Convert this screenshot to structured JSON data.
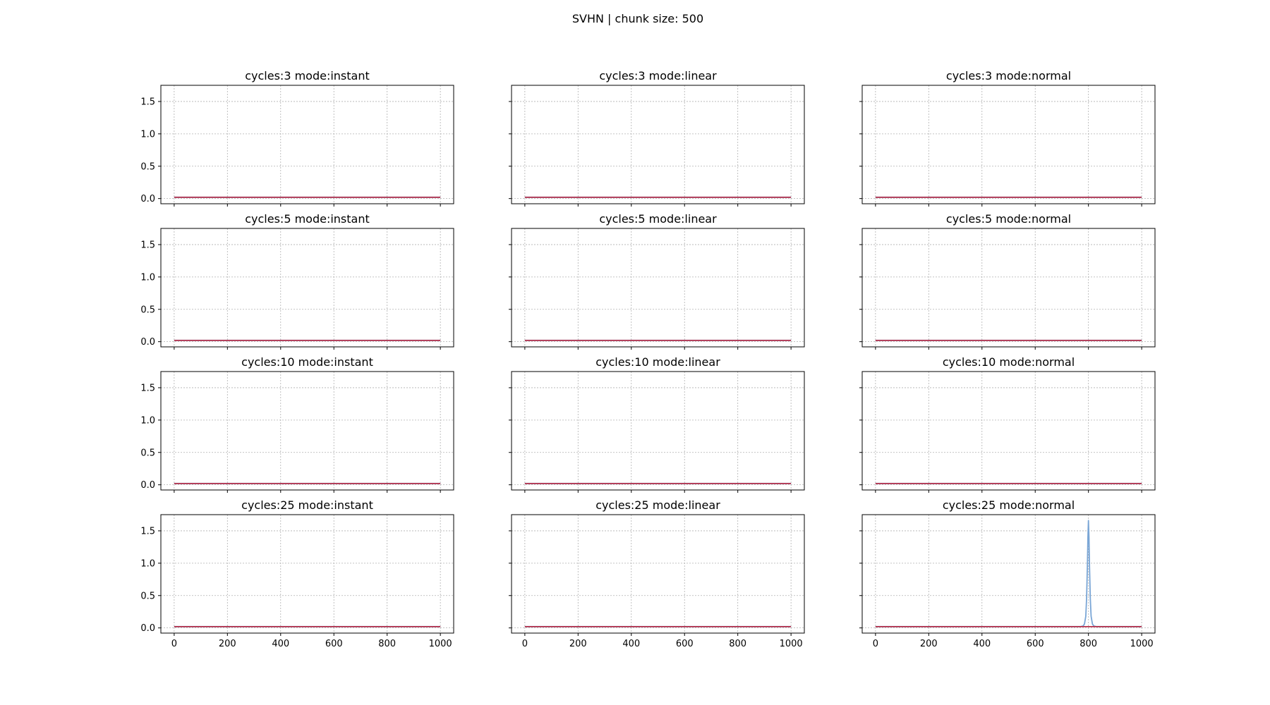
{
  "chart_data": {
    "title": "SVHN | chunk size: 500",
    "layout": {
      "rows": 4,
      "cols": 3
    },
    "type": "line",
    "xlim": [
      -50,
      1050
    ],
    "ylim": [
      -0.08,
      1.75
    ],
    "xticks": [
      0,
      200,
      400,
      600,
      800,
      1000
    ],
    "yticks": [
      0.0,
      0.5,
      1.0,
      1.5
    ],
    "xtick_labels": [
      "0",
      "200",
      "400",
      "600",
      "800",
      "1000"
    ],
    "ytick_labels": [
      "0.0",
      "0.5",
      "1.0",
      "1.5"
    ],
    "grid": true,
    "colors": {
      "series_a": "#7aa6d6",
      "series_b": "#b2233f",
      "grid": "#b0b0b0",
      "axes": "#000000"
    },
    "subplots": [
      {
        "title": "cycles:3 mode:instant",
        "series": [
          {
            "x": [
              0,
              1000
            ],
            "y": [
              0.02,
              0.02
            ]
          },
          {
            "x": [
              0,
              1000
            ],
            "y": [
              0.02,
              0.02
            ]
          }
        ]
      },
      {
        "title": "cycles:3 mode:linear",
        "series": [
          {
            "x": [
              0,
              1000
            ],
            "y": [
              0.02,
              0.02
            ]
          },
          {
            "x": [
              0,
              1000
            ],
            "y": [
              0.02,
              0.02
            ]
          }
        ]
      },
      {
        "title": "cycles:3 mode:normal",
        "series": [
          {
            "x": [
              0,
              1000
            ],
            "y": [
              0.02,
              0.02
            ]
          },
          {
            "x": [
              0,
              1000
            ],
            "y": [
              0.02,
              0.02
            ]
          }
        ]
      },
      {
        "title": "cycles:5 mode:instant",
        "series": [
          {
            "x": [
              0,
              1000
            ],
            "y": [
              0.02,
              0.02
            ]
          },
          {
            "x": [
              0,
              1000
            ],
            "y": [
              0.02,
              0.02
            ]
          }
        ]
      },
      {
        "title": "cycles:5 mode:linear",
        "series": [
          {
            "x": [
              0,
              1000
            ],
            "y": [
              0.02,
              0.02
            ]
          },
          {
            "x": [
              0,
              1000
            ],
            "y": [
              0.02,
              0.02
            ]
          }
        ]
      },
      {
        "title": "cycles:5 mode:normal",
        "series": [
          {
            "x": [
              0,
              1000
            ],
            "y": [
              0.02,
              0.02
            ]
          },
          {
            "x": [
              0,
              1000
            ],
            "y": [
              0.02,
              0.02
            ]
          }
        ]
      },
      {
        "title": "cycles:10 mode:instant",
        "series": [
          {
            "x": [
              0,
              1000
            ],
            "y": [
              0.02,
              0.02
            ]
          },
          {
            "x": [
              0,
              1000
            ],
            "y": [
              0.02,
              0.02
            ]
          }
        ]
      },
      {
        "title": "cycles:10 mode:linear",
        "series": [
          {
            "x": [
              0,
              1000
            ],
            "y": [
              0.02,
              0.02
            ]
          },
          {
            "x": [
              0,
              1000
            ],
            "y": [
              0.02,
              0.02
            ]
          }
        ]
      },
      {
        "title": "cycles:10 mode:normal",
        "series": [
          {
            "x": [
              0,
              1000
            ],
            "y": [
              0.02,
              0.02
            ]
          },
          {
            "x": [
              0,
              1000
            ],
            "y": [
              0.02,
              0.02
            ]
          }
        ]
      },
      {
        "title": "cycles:25 mode:instant",
        "series": [
          {
            "x": [
              0,
              1000
            ],
            "y": [
              0.02,
              0.02
            ]
          },
          {
            "x": [
              0,
              1000
            ],
            "y": [
              0.02,
              0.02
            ]
          }
        ]
      },
      {
        "title": "cycles:25 mode:linear",
        "series": [
          {
            "x": [
              0,
              1000
            ],
            "y": [
              0.02,
              0.02
            ]
          },
          {
            "x": [
              0,
              1000
            ],
            "y": [
              0.02,
              0.02
            ]
          }
        ]
      },
      {
        "title": "cycles:25 mode:normal",
        "series": [
          {
            "x": [
              0,
              770,
              780,
              785,
              790,
              793,
              796,
              798,
              800,
              802,
              804,
              807,
              810,
              815,
              820,
              830,
              1000
            ],
            "y": [
              0.02,
              0.02,
              0.03,
              0.06,
              0.18,
              0.45,
              0.95,
              1.4,
              1.66,
              1.4,
              0.95,
              0.45,
              0.18,
              0.06,
              0.03,
              0.02,
              0.02
            ]
          },
          {
            "x": [
              0,
              1000
            ],
            "y": [
              0.02,
              0.02
            ]
          }
        ]
      }
    ]
  }
}
